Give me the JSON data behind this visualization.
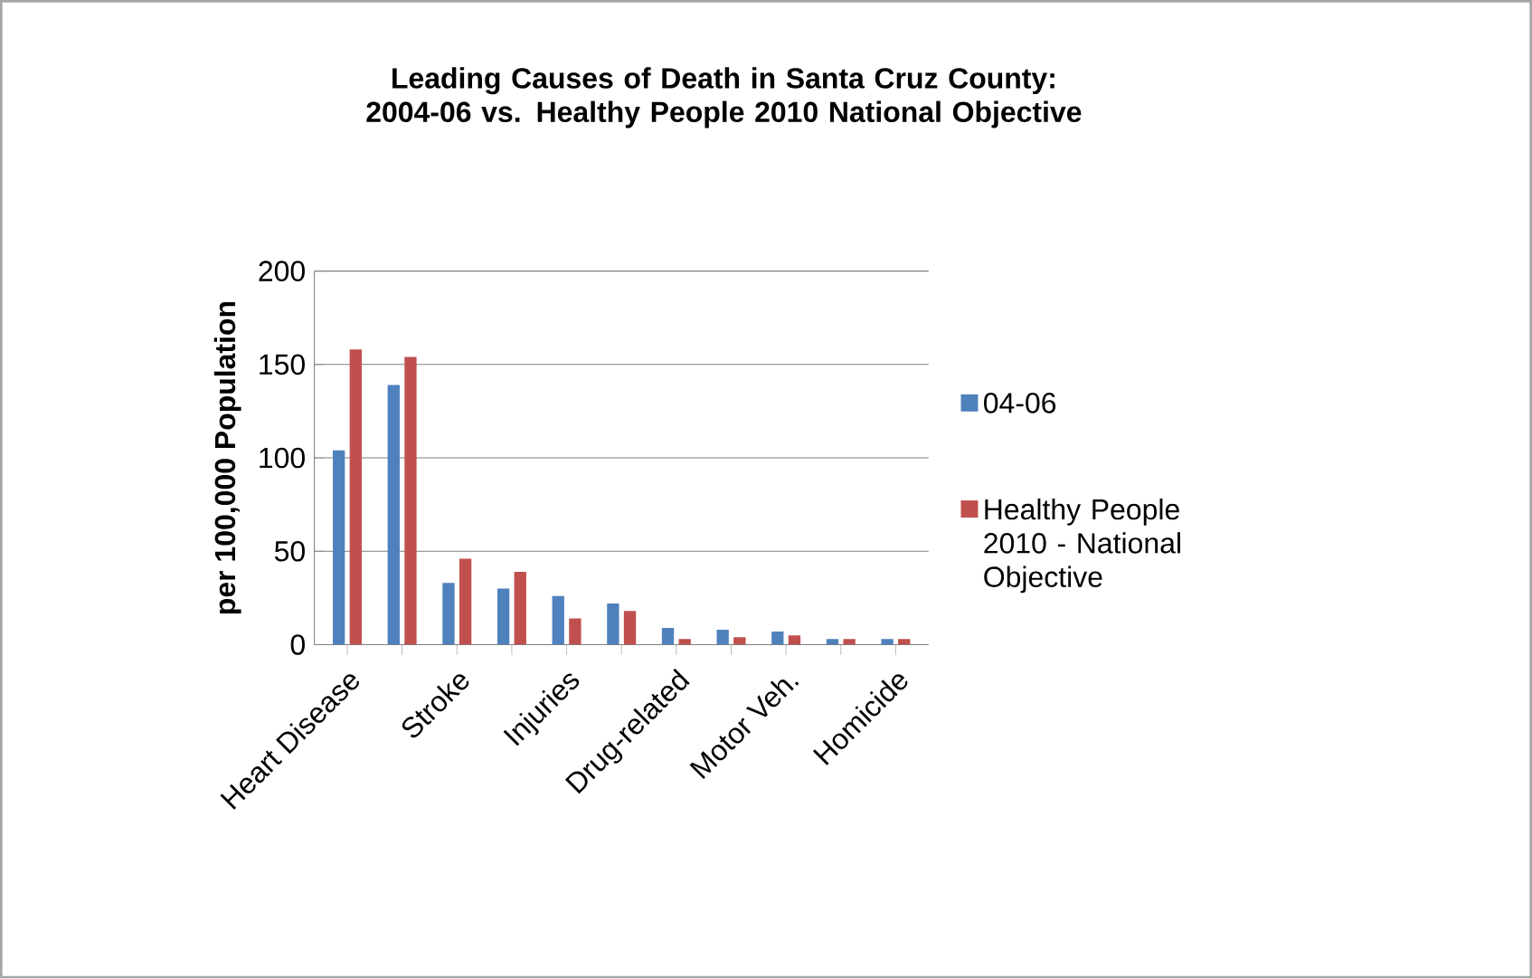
{
  "chart_data": {
    "type": "bar",
    "title": "Leading Causes of Death in Santa Cruz County: 2004-06 vs.  Healthy People 2010 National Objective",
    "ylabel": "per 100,000 Population",
    "categories": [
      "Heart Disease",
      null,
      "Stroke",
      null,
      "Injuries",
      null,
      "Drug-related",
      null,
      "Motor Veh.",
      null,
      "Homicide"
    ],
    "series": [
      {
        "name": "04-06",
        "color": "#4f81bd",
        "values": [
          104,
          139,
          33,
          30,
          26,
          22,
          9,
          8,
          7,
          3,
          3
        ]
      },
      {
        "name": "Healthy People 2010 - National Objective",
        "color": "#c0504d",
        "values": [
          158,
          154,
          46,
          39,
          14,
          18,
          3,
          4,
          5,
          3,
          3
        ]
      }
    ],
    "ylim": [
      0,
      200
    ],
    "yticks": [
      0,
      50,
      100,
      150,
      200
    ],
    "grid": "y",
    "legend": "right"
  }
}
